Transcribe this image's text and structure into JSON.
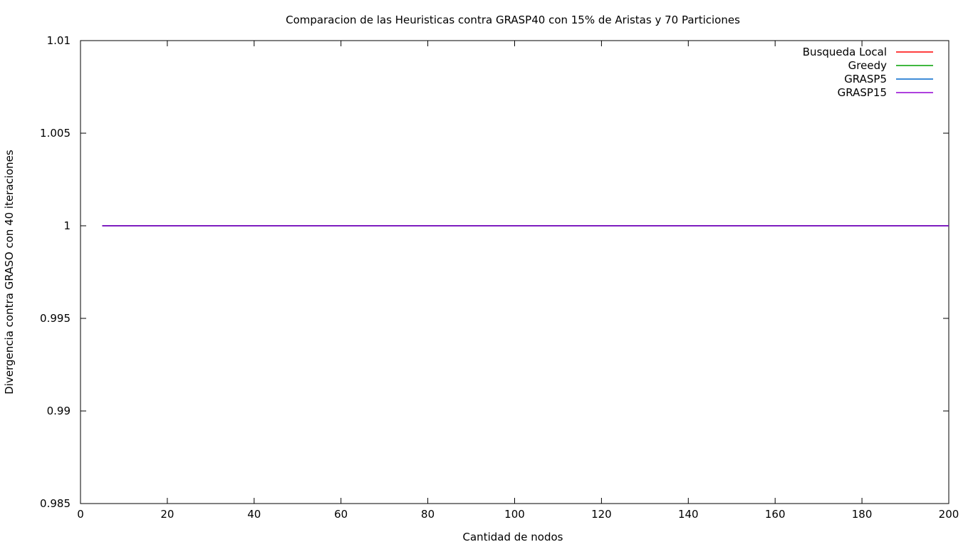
{
  "chart_data": {
    "type": "line",
    "title": "Comparacion de las Heuristicas contra GRASP40 con 15% de Aristas y 70 Particiones",
    "xlabel": "Cantidad de nodos",
    "ylabel": "Divergencia contra GRASO con 40 iteraciones",
    "xlim": [
      0,
      200
    ],
    "ylim": [
      0.985,
      1.01
    ],
    "xticks": [
      0,
      20,
      40,
      60,
      80,
      100,
      120,
      140,
      160,
      180,
      200
    ],
    "xtick_labels": [
      "0",
      "20",
      "40",
      "60",
      "80",
      "100",
      "120",
      "140",
      "160",
      "180",
      "200"
    ],
    "yticks": [
      0.985,
      0.99,
      0.995,
      1.0,
      1.005,
      1.01
    ],
    "ytick_labels": [
      "0.985",
      "0.99",
      "0.995",
      "1",
      "1.005",
      "1.01"
    ],
    "grid": false,
    "legend_position": "top-right",
    "series": [
      {
        "name": "Busqueda Local",
        "color": "#ff0000",
        "x": [
          5,
          200
        ],
        "y": [
          1.0,
          1.0
        ]
      },
      {
        "name": "Greedy",
        "color": "#00a000",
        "x": [
          5,
          200
        ],
        "y": [
          1.0,
          1.0
        ]
      },
      {
        "name": "GRASP5",
        "color": "#0066cc",
        "x": [
          5,
          200
        ],
        "y": [
          1.0,
          1.0
        ]
      },
      {
        "name": "GRASP15",
        "color": "#9400d3",
        "x": [
          5,
          200
        ],
        "y": [
          1.0,
          1.0
        ]
      }
    ]
  }
}
